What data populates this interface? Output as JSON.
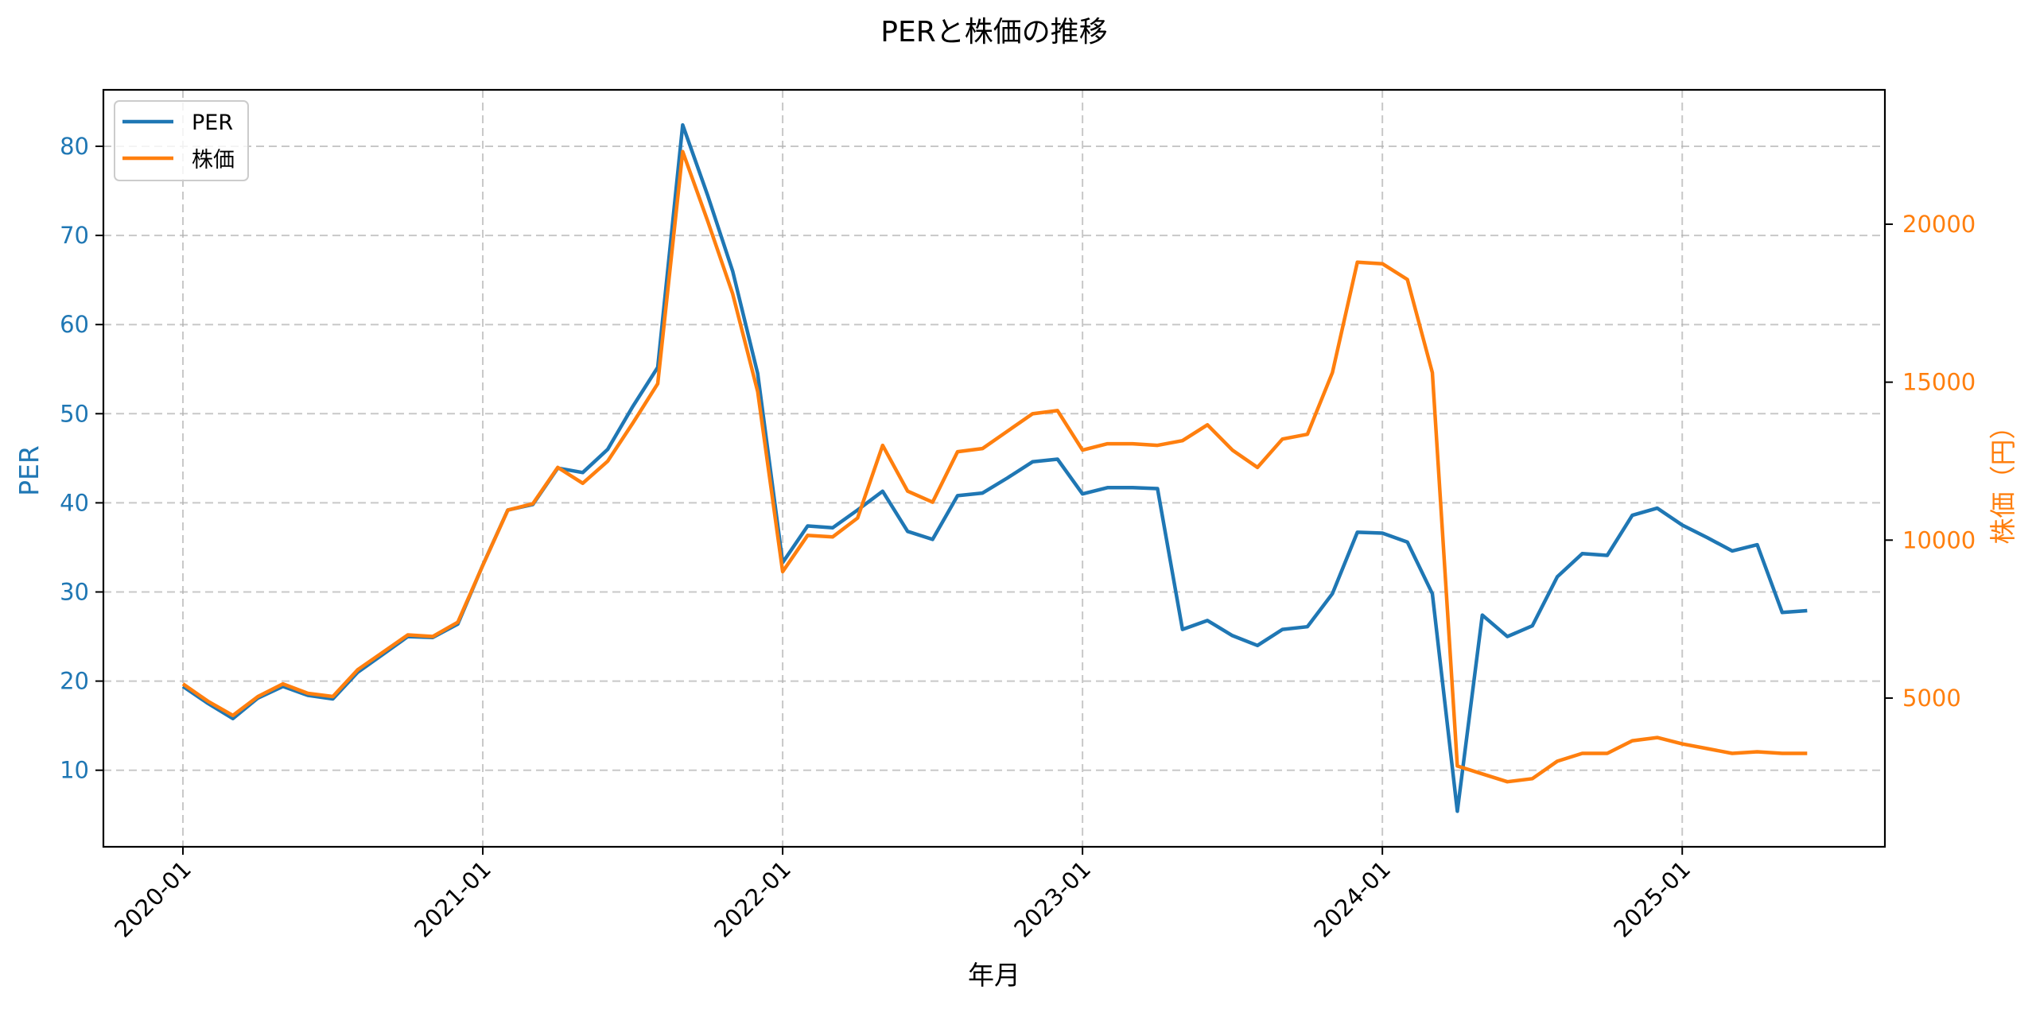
{
  "chart_data": {
    "type": "line",
    "title": "PERと株価の推移",
    "xlabel": "年月",
    "ylabel_left": "PER",
    "ylabel_right": "株価（円）",
    "grid": true,
    "legend_position": "upper left",
    "x_tick_labels": [
      "2020-01",
      "2021-01",
      "2022-01",
      "2023-01",
      "2024-01",
      "2025-01"
    ],
    "y_left_ticks": [
      10,
      20,
      30,
      40,
      50,
      60,
      70,
      80
    ],
    "y_right_ticks": [
      5000,
      10000,
      15000,
      20000
    ],
    "ylim_left": [
      1.4,
      86.4
    ],
    "ylim_right": [
      1000,
      24400
    ],
    "colors": {
      "PER": "#1f77b4",
      "株価": "#ff7f0e",
      "left_axis": "#1f77b4",
      "right_axis": "#ff7f0e"
    },
    "x": [
      "2020-01",
      "2020-02",
      "2020-03",
      "2020-04",
      "2020-05",
      "2020-06",
      "2020-07",
      "2020-08",
      "2020-09",
      "2020-10",
      "2020-11",
      "2020-12",
      "2021-01",
      "2021-02",
      "2021-03",
      "2021-04",
      "2021-05",
      "2021-06",
      "2021-07",
      "2021-08",
      "2021-09",
      "2021-10",
      "2021-11",
      "2021-12",
      "2022-01",
      "2022-02",
      "2022-03",
      "2022-04",
      "2022-05",
      "2022-06",
      "2022-07",
      "2022-08",
      "2022-09",
      "2022-10",
      "2022-11",
      "2022-12",
      "2023-01",
      "2023-02",
      "2023-03",
      "2023-04",
      "2023-05",
      "2023-06",
      "2023-07",
      "2023-08",
      "2023-09",
      "2023-10",
      "2023-11",
      "2023-12",
      "2024-01",
      "2024-02",
      "2024-03",
      "2024-04",
      "2024-05",
      "2024-06",
      "2024-07",
      "2024-08",
      "2024-09",
      "2024-10",
      "2024-11",
      "2024-12",
      "2025-01",
      "2025-02",
      "2025-03",
      "2025-04",
      "2025-05",
      "2025-06"
    ],
    "series": [
      {
        "name": "PER",
        "axis": "left",
        "values": [
          19.4,
          17.5,
          15.8,
          18.1,
          19.4,
          18.4,
          18.0,
          21.0,
          23.0,
          25.0,
          24.9,
          26.4,
          33.0,
          39.2,
          39.8,
          43.9,
          43.4,
          46.0,
          50.8,
          55.2,
          82.4,
          74.5,
          66.0,
          54.5,
          33.3,
          37.4,
          37.2,
          39.2,
          41.3,
          36.8,
          35.9,
          40.8,
          41.1,
          42.8,
          44.6,
          44.9,
          41.0,
          41.7,
          41.7,
          41.6,
          25.8,
          26.8,
          25.1,
          24.0,
          25.8,
          26.1,
          29.8,
          36.7,
          36.6,
          35.6,
          29.8,
          5.4,
          27.4,
          25.0,
          26.2,
          31.7,
          34.3,
          34.1,
          38.6,
          39.4,
          37.5,
          36.1,
          34.6,
          35.3,
          27.7,
          27.9
        ]
      },
      {
        "name": "株価",
        "axis": "right",
        "values": [
          5450,
          4900,
          4450,
          5050,
          5450,
          5150,
          5050,
          5900,
          6450,
          7000,
          6950,
          7400,
          9200,
          10950,
          11150,
          12300,
          11800,
          12500,
          13700,
          14950,
          22300,
          20100,
          17800,
          14700,
          9000,
          10150,
          10100,
          10700,
          13000,
          11550,
          11200,
          12800,
          12900,
          13450,
          14000,
          14100,
          12850,
          13050,
          13050,
          13000,
          13150,
          13650,
          12850,
          12300,
          13200,
          13350,
          15300,
          18800,
          18750,
          18250,
          15300,
          2850,
          2600,
          2350,
          2450,
          3000,
          3250,
          3250,
          3650,
          3750,
          3550,
          3400,
          3250,
          3300,
          3250,
          3250
        ]
      }
    ]
  },
  "legend": {
    "items": [
      {
        "label": "PER",
        "color": "#1f77b4"
      },
      {
        "label": "株価",
        "color": "#ff7f0e"
      }
    ]
  }
}
